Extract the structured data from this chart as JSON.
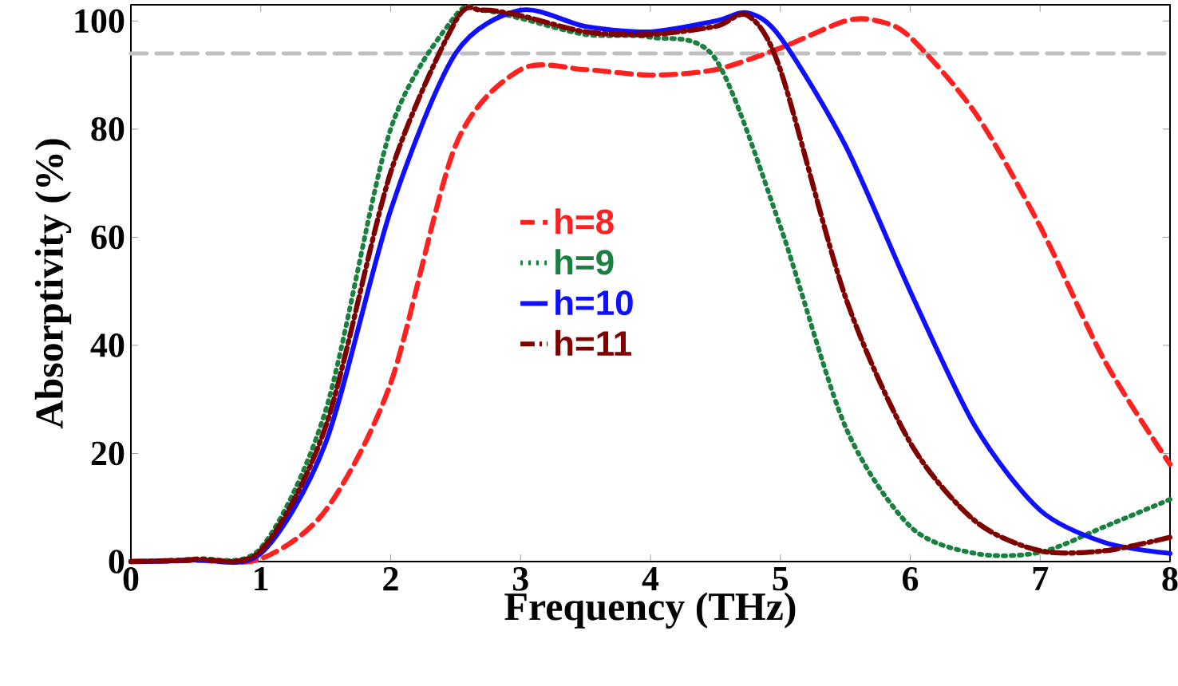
{
  "chart_data": {
    "type": "line",
    "xlabel": "Frequency (THz)",
    "ylabel": "Absorptivity (%)",
    "xlim": [
      0,
      8
    ],
    "ylim": [
      0,
      103
    ],
    "xticks": [
      0,
      1,
      2,
      3,
      4,
      5,
      6,
      7,
      8
    ],
    "yticks": [
      0,
      20,
      40,
      60,
      80,
      100
    ],
    "grid": false,
    "legend": "center",
    "ref_lines": [
      {
        "axis": "y",
        "value": 94,
        "color": "#c0c0c0",
        "line_style": "dashed"
      }
    ],
    "series": [
      {
        "name": "h=8",
        "color": "#ff2020",
        "line_style": "dashed",
        "x": [
          0,
          0.5,
          1,
          1.5,
          2,
          2.5,
          3,
          3.5,
          4,
          4.5,
          5,
          5.5,
          5.75,
          6,
          6.5,
          7,
          7.5,
          8
        ],
        "values": [
          0,
          0.2,
          0.5,
          9.5,
          33,
          77,
          91,
          91,
          90,
          91,
          95,
          100,
          100,
          97,
          83,
          62,
          37,
          18
        ]
      },
      {
        "name": "h=9",
        "color": "#1a8040",
        "line_style": "dotted",
        "x": [
          0,
          0.5,
          1,
          1.5,
          2,
          2.5,
          2.7,
          3,
          3.5,
          4,
          4.5,
          5,
          5.5,
          6,
          6.5,
          7,
          7.5,
          8
        ],
        "values": [
          0,
          0.5,
          2.5,
          28,
          80,
          101,
          102,
          100.5,
          97.5,
          97,
          93,
          62,
          25,
          6.5,
          1.5,
          1.7,
          6.5,
          11.5
        ]
      },
      {
        "name": "h=10",
        "color": "#1010ff",
        "line_style": "solid",
        "x": [
          0,
          0.5,
          1,
          1.5,
          2,
          2.5,
          3,
          3.5,
          4,
          4.5,
          4.75,
          5,
          5.5,
          6,
          6.5,
          7,
          7.5,
          8
        ],
        "values": [
          0,
          0.3,
          1.5,
          22,
          65,
          94,
          102,
          99,
          98,
          100,
          101.5,
          97,
          77,
          50,
          25,
          9.5,
          3.5,
          1.5
        ]
      },
      {
        "name": "h=11",
        "color": "#800000",
        "line_style": "dashdot",
        "x": [
          0,
          0.5,
          1,
          1.5,
          2,
          2.5,
          2.7,
          3,
          3.5,
          4,
          4.5,
          4.75,
          5,
          5.5,
          6,
          6.5,
          7,
          7.5,
          8
        ],
        "values": [
          0,
          0.4,
          2,
          25,
          72,
          100,
          102,
          101,
          98,
          97.5,
          99,
          101,
          91,
          49,
          22,
          7.5,
          2,
          2,
          4.5
        ]
      }
    ]
  }
}
